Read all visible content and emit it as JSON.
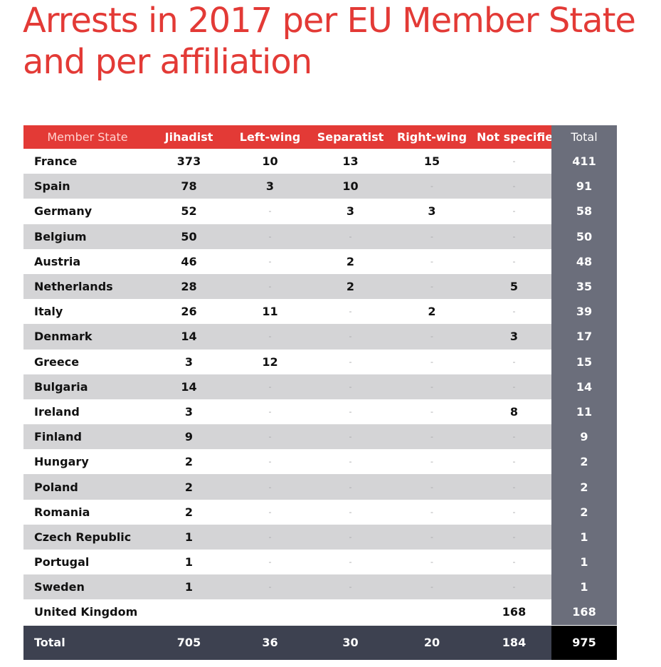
{
  "title": "Arrests in 2017 per EU Member State and per affiliation",
  "colors": {
    "accent": "#e33a36",
    "total_column": "#6b6e7b",
    "footer": "#3d4150",
    "shade": "#d4d4d6"
  },
  "chart_data": {
    "type": "table",
    "title": "Arrests in 2017 per EU Member State and per affiliation",
    "columns": [
      "Member State",
      "Jihadist",
      "Left-wing",
      "Separatist",
      "Right-wing",
      "Not specified",
      "Total"
    ],
    "rows": [
      [
        "France",
        "373",
        "10",
        "13",
        "15",
        "-",
        "411"
      ],
      [
        "Spain",
        "78",
        "3",
        "10",
        "-",
        "-",
        "91"
      ],
      [
        "Germany",
        "52",
        "-",
        "3",
        "3",
        "-",
        "58"
      ],
      [
        "Belgium",
        "50",
        "-",
        "-",
        "-",
        "-",
        "50"
      ],
      [
        "Austria",
        "46",
        "-",
        "2",
        "-",
        "-",
        "48"
      ],
      [
        "Netherlands",
        "28",
        "-",
        "2",
        "-",
        "5",
        "35"
      ],
      [
        "Italy",
        "26",
        "11",
        "-",
        "2",
        "-",
        "39"
      ],
      [
        "Denmark",
        "14",
        "-",
        "-",
        "-",
        "3",
        "17"
      ],
      [
        "Greece",
        "3",
        "12",
        "-",
        "-",
        "-",
        "15"
      ],
      [
        "Bulgaria",
        "14",
        "-",
        "-",
        "-",
        "-",
        "14"
      ],
      [
        "Ireland",
        "3",
        "-",
        "-",
        "-",
        "8",
        "11"
      ],
      [
        "Finland",
        "9",
        "-",
        "-",
        "-",
        "-",
        "9"
      ],
      [
        "Hungary",
        "2",
        "-",
        "-",
        "-",
        "-",
        "2"
      ],
      [
        "Poland",
        "2",
        "-",
        "-",
        "-",
        "-",
        "2"
      ],
      [
        "Romania",
        "2",
        "-",
        "-",
        "-",
        "-",
        "2"
      ],
      [
        "Czech Republic",
        "1",
        "-",
        "-",
        "-",
        "-",
        "1"
      ],
      [
        "Portugal",
        "1",
        "-",
        "-",
        "-",
        "-",
        "1"
      ],
      [
        "Sweden",
        "1",
        "-",
        "-",
        "-",
        "-",
        "1"
      ],
      [
        "United Kingdom",
        "",
        "",
        "",
        "",
        "168",
        "168"
      ]
    ],
    "total_row": [
      "Total",
      "705",
      "36",
      "30",
      "20",
      "184",
      "975"
    ]
  }
}
